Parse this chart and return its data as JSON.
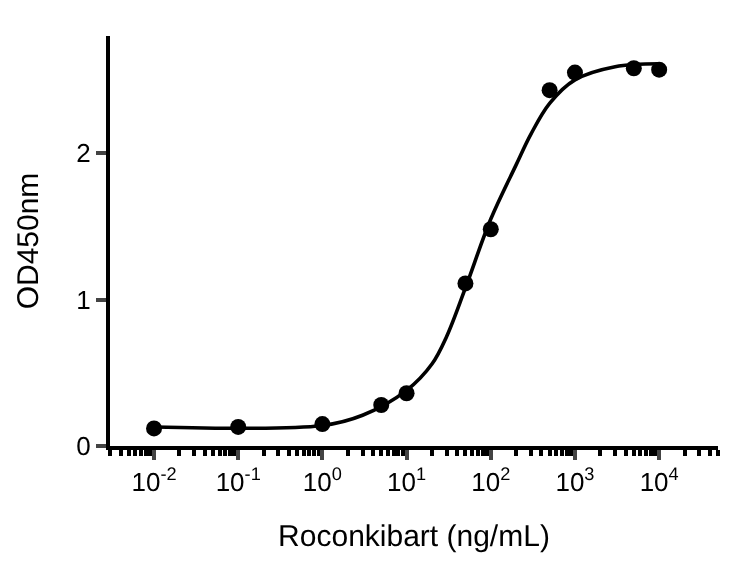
{
  "chart_data": {
    "type": "scatter",
    "xlabel": "Roconkibart (ng/mL)",
    "ylabel": "OD450nm",
    "log": "x",
    "xlim": [
      0.003,
      50000
    ],
    "xticks": [
      {
        "value": 0.01,
        "label": "10$^{-2}$"
      },
      {
        "value": 0.1,
        "label": "10$^{-1}$"
      },
      {
        "value": 1,
        "label": "10$^{0}$"
      },
      {
        "value": 10,
        "label": "10$^{1}$"
      },
      {
        "value": 100,
        "label": "10$^{2}$"
      },
      {
        "value": 1000,
        "label": "10$^{3}$"
      },
      {
        "value": 10000,
        "label": "10$^{4}$"
      }
    ],
    "ylim": [
      0,
      2.8
    ],
    "yticks": [
      0,
      1,
      2
    ],
    "legend": false,
    "series": [
      {
        "marker": "circle",
        "color": "#000000",
        "x": [
          0.01,
          0.1,
          1,
          5,
          10,
          50,
          100,
          500,
          1000,
          5000,
          10000
        ],
        "values": [
          0.12,
          0.13,
          0.15,
          0.28,
          0.36,
          1.11,
          1.48,
          2.43,
          2.55,
          2.58,
          2.57
        ]
      },
      {
        "type": "line",
        "color": "#000000",
        "line_style": "solid",
        "x": [
          0.01,
          1,
          3,
          10,
          20,
          30,
          50,
          100,
          200,
          300,
          500,
          1000,
          3000,
          10000
        ],
        "values": [
          0.13,
          0.14,
          0.21,
          0.38,
          0.56,
          0.75,
          1.08,
          1.55,
          1.92,
          2.13,
          2.34,
          2.5,
          2.59,
          2.61
        ]
      }
    ]
  }
}
